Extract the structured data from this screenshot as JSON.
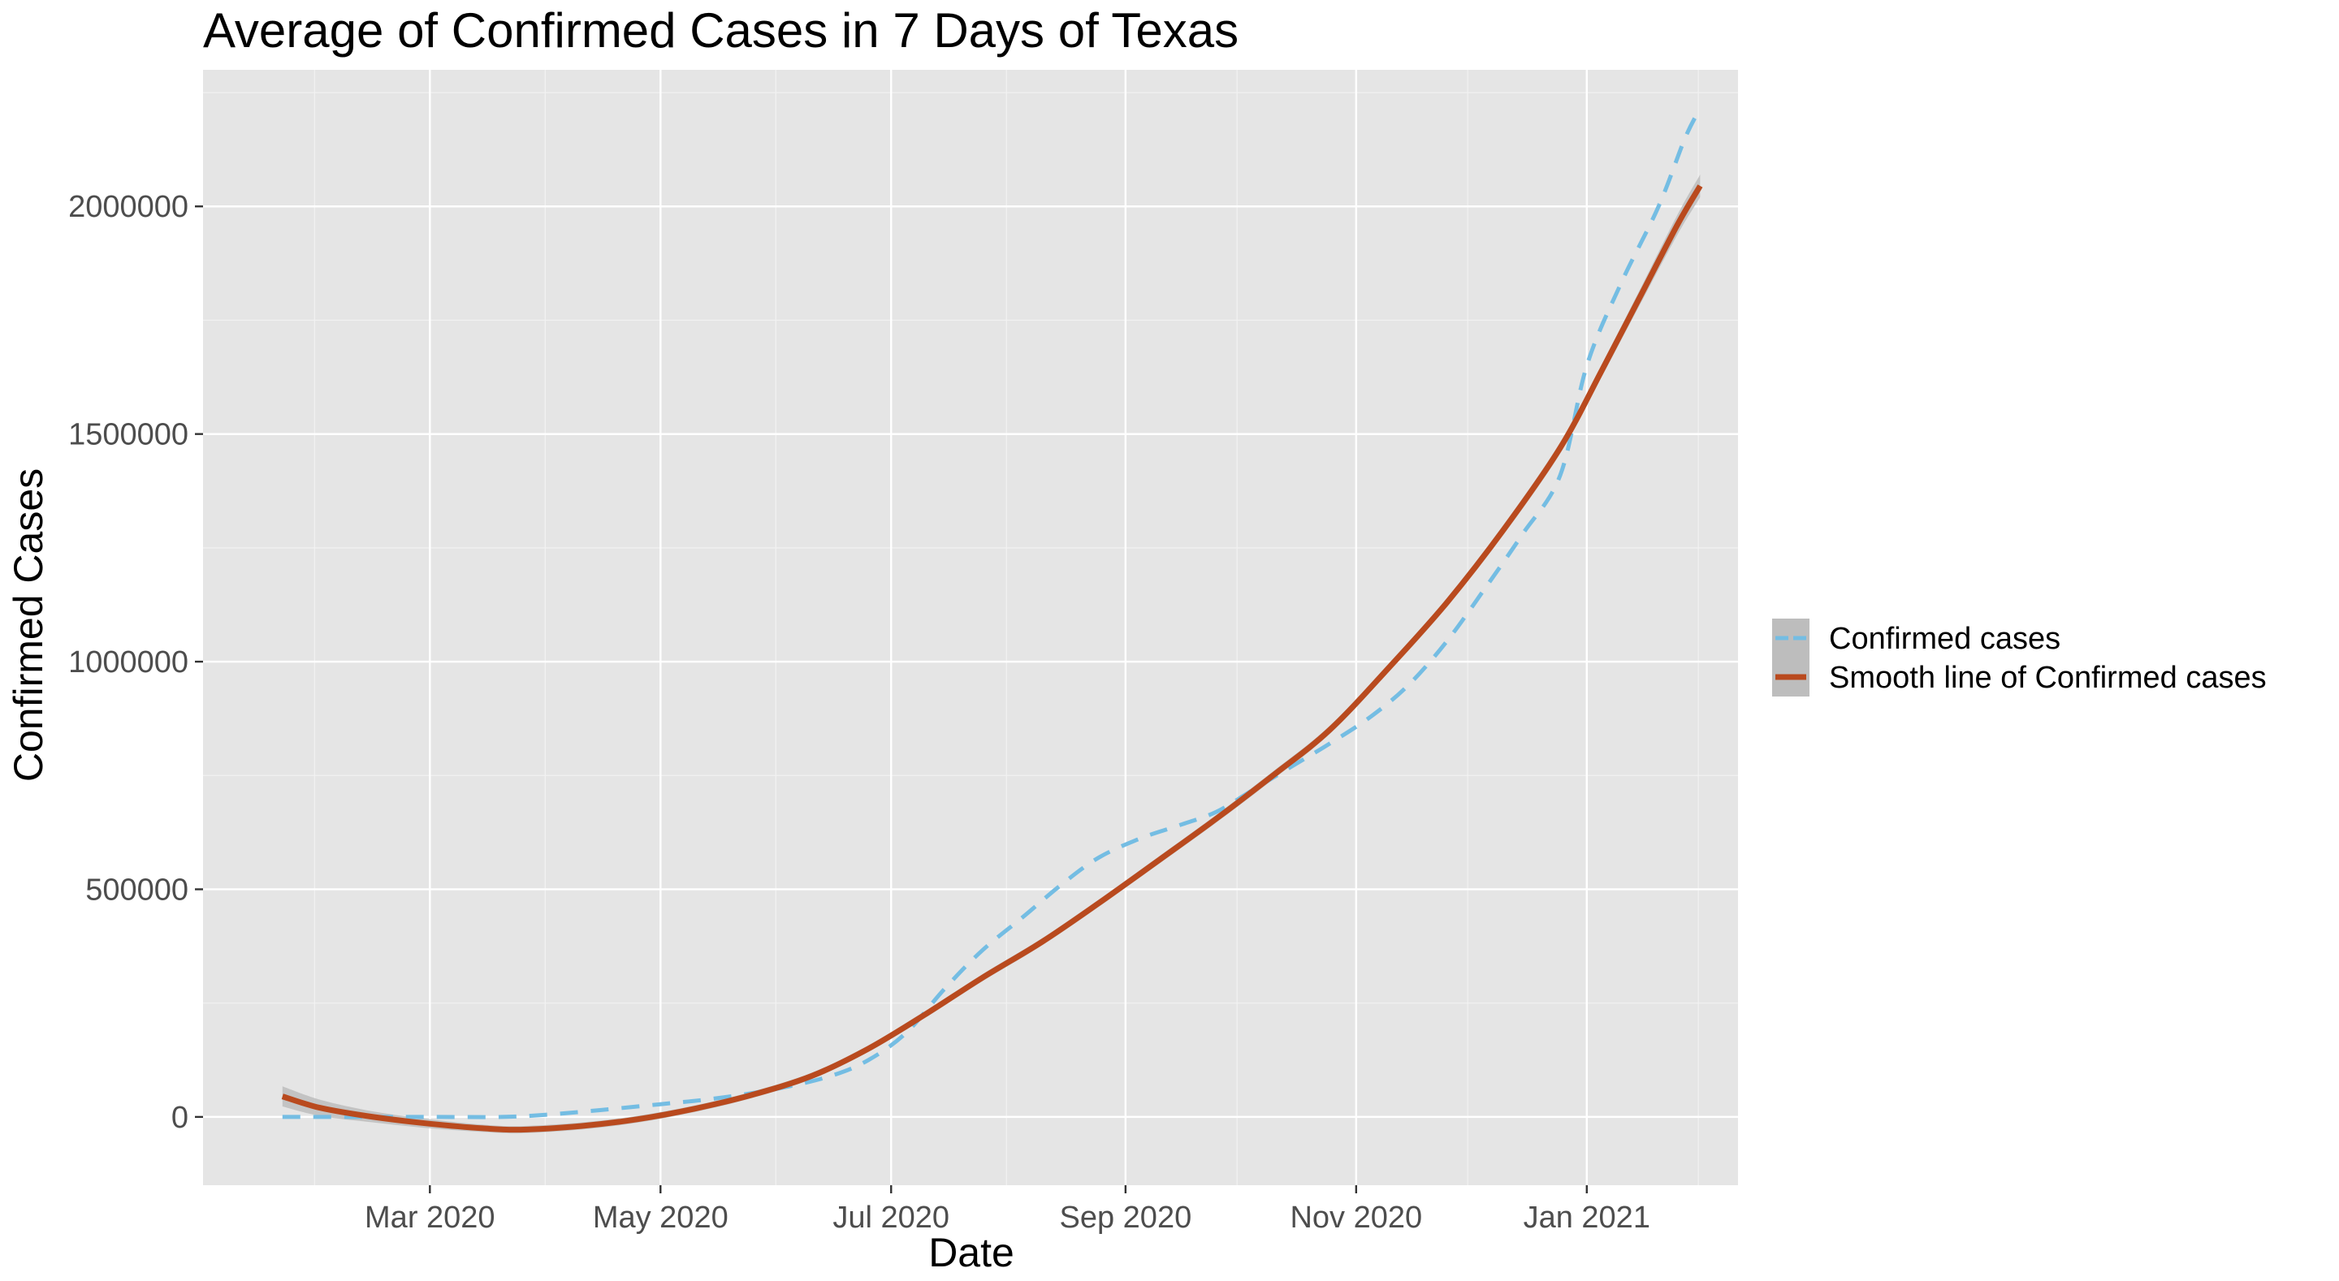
{
  "chart_data": {
    "type": "line",
    "title": "Average of Confirmed Cases in 7 Days of Texas",
    "xlabel": "Date",
    "ylabel": "Confirmed Cases",
    "x_axis": {
      "type": "date",
      "range": [
        "2020-01-01",
        "2021-02-10"
      ],
      "ticks": [
        {
          "date": "2020-03-01",
          "label": "Mar 2020"
        },
        {
          "date": "2020-05-01",
          "label": "May 2020"
        },
        {
          "date": "2020-07-01",
          "label": "Jul 2020"
        },
        {
          "date": "2020-09-01",
          "label": "Sep 2020"
        },
        {
          "date": "2020-11-01",
          "label": "Nov 2020"
        },
        {
          "date": "2021-01-01",
          "label": "Jan 2021"
        }
      ]
    },
    "y_axis": {
      "range": [
        -150000,
        2300000
      ],
      "ticks": [
        {
          "value": 0,
          "label": "0"
        },
        {
          "value": 500000,
          "label": "500000"
        },
        {
          "value": 1000000,
          "label": "1000000"
        },
        {
          "value": 1500000,
          "label": "1500000"
        },
        {
          "value": 2000000,
          "label": "2000000"
        }
      ]
    },
    "grid": true,
    "legend_position": "right",
    "series": [
      {
        "name": "Confirmed cases",
        "style": "dashed",
        "color": "#74bde3",
        "points": [
          [
            "2020-01-22",
            0
          ],
          [
            "2020-02-15",
            0
          ],
          [
            "2020-03-01",
            0
          ],
          [
            "2020-03-20",
            0
          ],
          [
            "2020-04-01",
            5000
          ],
          [
            "2020-04-15",
            15000
          ],
          [
            "2020-05-01",
            28000
          ],
          [
            "2020-05-15",
            40000
          ],
          [
            "2020-06-01",
            62000
          ],
          [
            "2020-06-15",
            90000
          ],
          [
            "2020-06-25",
            125000
          ],
          [
            "2020-07-05",
            185000
          ],
          [
            "2020-07-15",
            280000
          ],
          [
            "2020-07-25",
            365000
          ],
          [
            "2020-08-05",
            440000
          ],
          [
            "2020-08-15",
            510000
          ],
          [
            "2020-08-25",
            570000
          ],
          [
            "2020-09-05",
            612000
          ],
          [
            "2020-09-15",
            640000
          ],
          [
            "2020-09-25",
            670000
          ],
          [
            "2020-10-05",
            720000
          ],
          [
            "2020-10-15",
            770000
          ],
          [
            "2020-10-25",
            820000
          ],
          [
            "2020-11-05",
            880000
          ],
          [
            "2020-11-15",
            950000
          ],
          [
            "2020-11-25",
            1045000
          ],
          [
            "2020-12-05",
            1160000
          ],
          [
            "2020-12-15",
            1280000
          ],
          [
            "2020-12-25",
            1410000
          ],
          [
            "2021-01-01",
            1650000
          ],
          [
            "2021-01-10",
            1830000
          ],
          [
            "2021-01-20",
            2000000
          ],
          [
            "2021-01-27",
            2150000
          ],
          [
            "2021-01-31",
            2215000
          ]
        ]
      },
      {
        "name": "Smooth line of Confirmed cases",
        "style": "solid",
        "color": "#b94a1e",
        "confidence_band_color": "#bdbdbd",
        "points": [
          [
            "2020-01-22",
            45000
          ],
          [
            "2020-02-01",
            20000
          ],
          [
            "2020-02-15",
            0
          ],
          [
            "2020-03-01",
            -15000
          ],
          [
            "2020-03-15",
            -25000
          ],
          [
            "2020-03-25",
            -28000
          ],
          [
            "2020-04-10",
            -20000
          ],
          [
            "2020-04-25",
            -5000
          ],
          [
            "2020-05-10",
            18000
          ],
          [
            "2020-05-25",
            48000
          ],
          [
            "2020-06-10",
            90000
          ],
          [
            "2020-06-25",
            150000
          ],
          [
            "2020-07-10",
            225000
          ],
          [
            "2020-07-25",
            305000
          ],
          [
            "2020-08-10",
            385000
          ],
          [
            "2020-08-25",
            470000
          ],
          [
            "2020-09-10",
            565000
          ],
          [
            "2020-09-25",
            655000
          ],
          [
            "2020-10-10",
            750000
          ],
          [
            "2020-10-25",
            850000
          ],
          [
            "2020-11-10",
            990000
          ],
          [
            "2020-11-25",
            1130000
          ],
          [
            "2020-12-10",
            1290000
          ],
          [
            "2020-12-25",
            1470000
          ],
          [
            "2021-01-05",
            1640000
          ],
          [
            "2021-01-15",
            1800000
          ],
          [
            "2021-01-25",
            1960000
          ],
          [
            "2021-01-31",
            2045000
          ]
        ],
        "band_halfwidth": [
          [
            "2020-01-22",
            22000
          ],
          [
            "2020-02-15",
            12000
          ],
          [
            "2020-03-15",
            8000
          ],
          [
            "2020-06-01",
            7000
          ],
          [
            "2020-09-01",
            8000
          ],
          [
            "2020-12-01",
            10000
          ],
          [
            "2021-01-10",
            14000
          ],
          [
            "2021-01-31",
            25000
          ]
        ]
      }
    ]
  },
  "colors": {
    "panel_background": "#e5e5e5",
    "grid_major": "#ffffff",
    "grid_minor": "#f2f2f2",
    "legend_key_background": "#bdbdbd"
  }
}
